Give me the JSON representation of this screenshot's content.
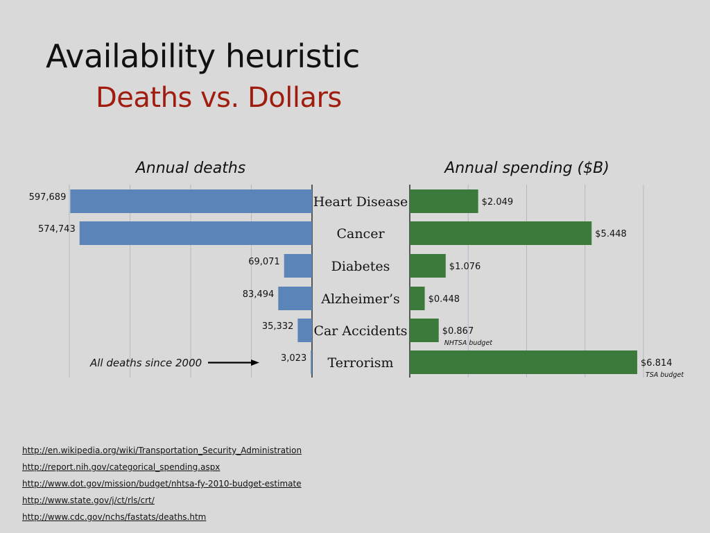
{
  "slide": {
    "title": "Availability heuristic",
    "subtitle": "Deaths vs. Dollars",
    "subtitle_color": "#a01c0f"
  },
  "chart_data": {
    "type": "bar",
    "orientation": "horizontal",
    "categories": [
      "Heart Disease",
      "Cancer",
      "Diabetes",
      "Alzheimer’s",
      "Car Accidents",
      "Terrorism"
    ],
    "series": [
      {
        "name": "Annual deaths",
        "values": [
          597689,
          574743,
          69071,
          83494,
          35332,
          3023
        ],
        "labels": [
          "597,689",
          "574,743",
          "69,071",
          "83,494",
          "35,332",
          "3,023"
        ],
        "color": "#5b85b8",
        "xlim": [
          0,
          600000
        ],
        "direction": "right-to-left"
      },
      {
        "name": "Annual spending ($B)",
        "values": [
          2.049,
          5.448,
          1.076,
          0.448,
          0.867,
          6.814
        ],
        "labels": [
          "$2.049",
          "$5.448",
          "$1.076",
          "$0.448",
          "$0.867",
          "$6.814"
        ],
        "notes": [
          "",
          "",
          "",
          "",
          "NHTSA budget",
          "TSA budget"
        ],
        "color": "#3b7a3a",
        "xlim": [
          0,
          7
        ],
        "direction": "left-to-right"
      }
    ],
    "annotation": "All deaths since 2000",
    "grid": true,
    "gridline_color": "#b3b7c7"
  },
  "sources": [
    "http://en.wikipedia.org/wiki/Transportation_Security_Administration",
    "http://report.nih.gov/categorical_spending.aspx",
    "http://www.dot.gov/mission/budget/nhtsa-fy-2010-budget-estimate",
    "http://www.state.gov/j/ct/rls/crt/",
    "http://www.cdc.gov/nchs/fastats/deaths.htm"
  ]
}
